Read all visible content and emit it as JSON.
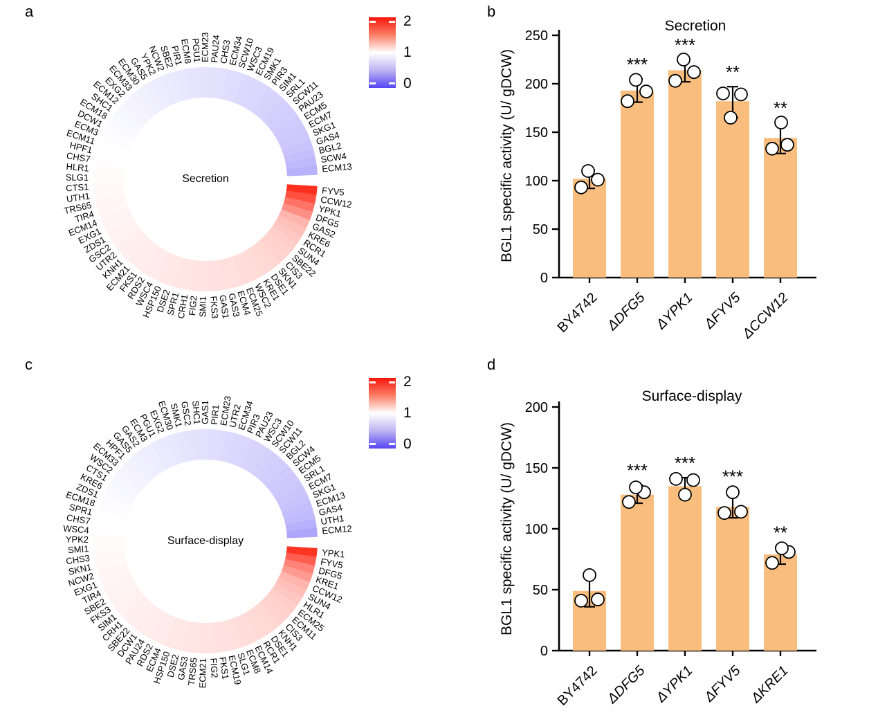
{
  "figure": {
    "panel_letters": [
      "a",
      "b",
      "c",
      "d"
    ],
    "background": "#ffffff"
  },
  "colors": {
    "bar_fill": "#F9BE7D",
    "heat_red": "#FF1E0A",
    "heat_blue": "#5546F5",
    "heat_mid": "#FFFFFF",
    "axis": "#000000",
    "point_fill": "#FFFFFF"
  },
  "colorbar": {
    "ticks": [
      "2",
      "1",
      "0"
    ]
  },
  "chart_data": [
    {
      "id": "a",
      "type": "heatmap",
      "subtype": "circular-ring",
      "title": "Secretion",
      "legend": {
        "range": [
          0,
          2
        ],
        "ticks": [
          2,
          1,
          0
        ],
        "colormap": "blue-white-red",
        "position": "top-right"
      },
      "genes": [
        "FYV5",
        "CCW12",
        "YPK1",
        "DFG5",
        "GAS2",
        "KRE6",
        "RCR1",
        "SUN4",
        "SBE22",
        "CIS3",
        "SKN1",
        "DSE1",
        "KRE1",
        "WSC2",
        "ECM25",
        "ECM4",
        "GAS3",
        "GAS1",
        "FKS3",
        "SMI1",
        "FIG2",
        "CRH1",
        "SPR1",
        "DSE2",
        "HSP150",
        "WSC4",
        "RDS2",
        "FKS1",
        "ECM21",
        "KNH1",
        "UTR2",
        "GSC2",
        "ZDS1",
        "EXG1",
        "ECM14",
        "TIR4",
        "TRS65",
        "UTH1",
        "CTS1",
        "SLG1",
        "HLR1",
        "CHS7",
        "HPF1",
        "ECM11",
        "ECM3",
        "DCW1",
        "ECM18",
        "SHC1",
        "ECM12",
        "EXG2",
        "ECM33",
        "ECM30",
        "GAS5",
        "YPK2",
        "NCW2",
        "SBE2",
        "PIR1",
        "ECM8",
        "PGU1",
        "ECM23",
        "PAU24",
        "CHS3",
        "ECM34",
        "SCW10",
        "WSC3",
        "ECM19",
        "SMK1",
        "PIR3",
        "SIM1",
        "SRL1",
        "SCW11",
        "PAU23",
        "ECM5",
        "ECM7",
        "SKG1",
        "GAS4",
        "BGL2",
        "SCW4",
        "ECM13"
      ],
      "values": [
        1.92,
        1.78,
        1.62,
        1.5,
        1.33,
        1.28,
        1.25,
        1.22,
        1.2,
        1.19,
        1.18,
        1.17,
        1.16,
        1.15,
        1.15,
        1.14,
        1.14,
        1.13,
        1.13,
        1.12,
        1.12,
        1.11,
        1.11,
        1.1,
        1.1,
        1.09,
        1.09,
        1.08,
        1.08,
        1.07,
        1.07,
        1.06,
        1.06,
        1.05,
        1.05,
        1.04,
        1.04,
        1.03,
        1.03,
        1.02,
        1.02,
        1.01,
        1.0,
        1.0,
        0.99,
        0.98,
        0.97,
        0.96,
        0.95,
        0.94,
        0.93,
        0.92,
        0.91,
        0.9,
        0.89,
        0.88,
        0.87,
        0.86,
        0.85,
        0.85,
        0.84,
        0.83,
        0.82,
        0.81,
        0.8,
        0.79,
        0.78,
        0.77,
        0.76,
        0.75,
        0.74,
        0.73,
        0.72,
        0.71,
        0.7,
        0.68,
        0.66,
        0.62,
        0.58
      ]
    },
    {
      "id": "b",
      "type": "bar",
      "title": "Secretion",
      "ylabel": "BGL1 specific activity (U/ gDCW)",
      "ylim": [
        0,
        250
      ],
      "yticks": [
        0,
        50,
        100,
        150,
        200,
        250
      ],
      "categories": [
        "BY4742",
        "ΔDFG5",
        "ΔYPK1",
        "ΔFYV5",
        "ΔCCW12"
      ],
      "italic": [
        false,
        true,
        true,
        true,
        true
      ],
      "values": [
        102,
        193,
        214,
        182,
        144
      ],
      "points": [
        [
          [
            -12,
            93
          ],
          [
            12,
            101
          ],
          [
            -2,
            110
          ]
        ],
        [
          [
            -14,
            182
          ],
          [
            13,
            192
          ],
          [
            -2,
            204
          ]
        ],
        [
          [
            -14,
            203
          ],
          [
            13,
            212
          ],
          [
            -2,
            225
          ]
        ],
        [
          [
            -14,
            190
          ],
          [
            12,
            189
          ],
          [
            -3,
            165
          ]
        ],
        [
          [
            -12,
            133
          ],
          [
            10,
            137
          ],
          [
            1,
            160
          ]
        ]
      ],
      "error_range": [
        [
          92,
          111
        ],
        [
          181,
          205
        ],
        [
          202,
          225
        ],
        [
          165,
          197
        ],
        [
          128,
          160
        ]
      ],
      "significance": [
        "",
        "***",
        "***",
        "**",
        "**"
      ]
    },
    {
      "id": "c",
      "type": "heatmap",
      "subtype": "circular-ring",
      "title": "Surface-display",
      "legend": {
        "range": [
          0,
          2
        ],
        "ticks": [
          2,
          1,
          0
        ],
        "colormap": "blue-white-red",
        "position": "top-right"
      },
      "genes": [
        "YPK1",
        "FYV5",
        "DFG5",
        "KRE1",
        "CCW12",
        "SUN4",
        "HLR1",
        "ECM25",
        "ECM11",
        "CIS3",
        "KNH1",
        "DSE1",
        "RCR1",
        "ECM14",
        "ECM8",
        "SLG1",
        "ECM19",
        "FKS1",
        "FIG2",
        "ECM21",
        "TRS65",
        "GAS3",
        "DSE2",
        "HSP150",
        "ECM4",
        "RDS2",
        "PAU24",
        "DCW1",
        "SBE22",
        "CRH1",
        "SIM1",
        "FKS3",
        "SBE2",
        "TIR4",
        "EXG1",
        "NCW2",
        "SKN1",
        "CHS3",
        "SMI1",
        "YPK2",
        "WSC4",
        "CHS7",
        "SPR1",
        "ECM18",
        "ZDS1",
        "KRE6",
        "CTS1",
        "WSC2",
        "ECM33",
        "HPF1",
        "GAS5",
        "GAS2",
        "ECM3",
        "PGU1",
        "EXG2",
        "ECM30",
        "SMK1",
        "GSC2",
        "SHC1",
        "GAS1",
        "PIR1",
        "ECM23",
        "UTR2",
        "ECM34",
        "PIR3",
        "PAU23",
        "WSC3",
        "SCW10",
        "SCW11",
        "BGL2",
        "SCW4",
        "ECM5",
        "SRL1",
        "ECM7",
        "SKG1",
        "ECM13",
        "GAS4",
        "UTH1",
        "ECM12"
      ],
      "values": [
        1.9,
        1.72,
        1.55,
        1.45,
        1.33,
        1.28,
        1.25,
        1.22,
        1.2,
        1.19,
        1.18,
        1.17,
        1.16,
        1.15,
        1.15,
        1.14,
        1.13,
        1.13,
        1.12,
        1.12,
        1.11,
        1.11,
        1.1,
        1.1,
        1.09,
        1.09,
        1.08,
        1.08,
        1.07,
        1.07,
        1.06,
        1.06,
        1.05,
        1.05,
        1.04,
        1.04,
        1.03,
        1.03,
        1.02,
        1.02,
        1.01,
        1.0,
        1.0,
        0.99,
        0.98,
        0.97,
        0.96,
        0.95,
        0.94,
        0.93,
        0.92,
        0.91,
        0.9,
        0.89,
        0.88,
        0.87,
        0.86,
        0.85,
        0.84,
        0.83,
        0.82,
        0.81,
        0.8,
        0.79,
        0.78,
        0.77,
        0.76,
        0.75,
        0.74,
        0.73,
        0.72,
        0.71,
        0.7,
        0.69,
        0.67,
        0.65,
        0.63,
        0.58,
        0.52
      ]
    },
    {
      "id": "d",
      "type": "bar",
      "title": "Surface-display",
      "ylabel": "BGL1 specific activity (U/ gDCW)",
      "ylim": [
        0,
        200
      ],
      "yticks": [
        0,
        50,
        100,
        150,
        200
      ],
      "categories": [
        "BY4742",
        "ΔDFG5",
        "ΔYPK1",
        "ΔFYV5",
        "ΔKRE1"
      ],
      "italic": [
        false,
        true,
        true,
        true,
        true
      ],
      "values": [
        49,
        128,
        135,
        118,
        79
      ],
      "points": [
        [
          [
            -12,
            41
          ],
          [
            12,
            42
          ],
          [
            0,
            62
          ]
        ],
        [
          [
            -12,
            122
          ],
          [
            10,
            130
          ],
          [
            -2,
            134
          ]
        ],
        [
          [
            -13,
            141
          ],
          [
            12,
            140
          ],
          [
            0,
            128
          ]
        ],
        [
          [
            -12,
            113
          ],
          [
            12,
            114
          ],
          [
            0,
            130
          ]
        ],
        [
          [
            -12,
            72
          ],
          [
            12,
            81
          ],
          [
            2,
            84
          ]
        ]
      ],
      "error_range": [
        [
          36,
          62
        ],
        [
          121,
          136
        ],
        [
          127,
          142
        ],
        [
          109,
          131
        ],
        [
          71,
          85
        ]
      ],
      "significance": [
        "",
        "***",
        "***",
        "***",
        "**"
      ]
    }
  ]
}
